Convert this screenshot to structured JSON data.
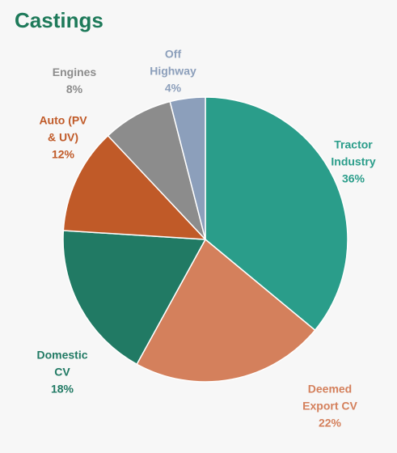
{
  "chart_data": {
    "type": "pie",
    "title": "Castings",
    "categories": [
      "Tractor Industry",
      "Deemed Export CV",
      "Domestic CV",
      "Auto (PV & UV)",
      "Engines",
      "Off Highway"
    ],
    "values": [
      36,
      22,
      18,
      12,
      8,
      4
    ],
    "value_labels": [
      "36%",
      "22%",
      "18%",
      "12%",
      "8%",
      "4%"
    ],
    "colors": [
      "#2a9d8a",
      "#d4805c",
      "#217a64",
      "#c05a28",
      "#8c8c8c",
      "#8c9fbb"
    ]
  }
}
